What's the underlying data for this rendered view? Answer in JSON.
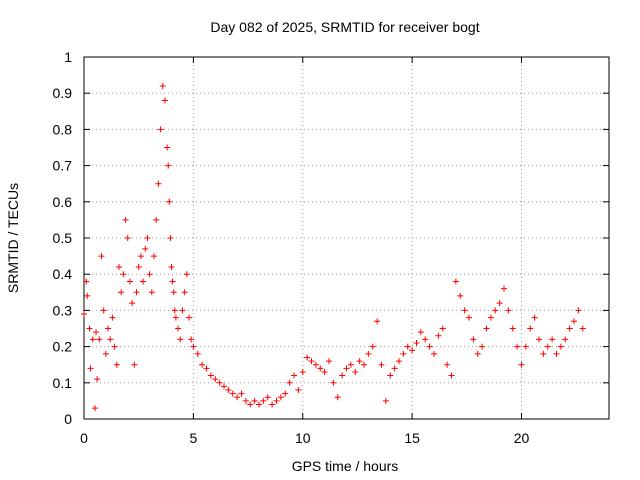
{
  "chart_data": {
    "type": "scatter",
    "title": "Day 082 of 2025, SRMTID for receiver bogt",
    "xlabel": "GPS time / hours",
    "ylabel": "SRMTID / TECUs",
    "xlim": [
      0,
      24
    ],
    "ylim": [
      0,
      1
    ],
    "x_ticks": [
      0,
      5,
      10,
      15,
      20
    ],
    "y_ticks": [
      0,
      0.1,
      0.2,
      0.3,
      0.4,
      0.5,
      0.6,
      0.7,
      0.8,
      0.9,
      1
    ],
    "x_tick_labels": [
      "0",
      "5",
      "10",
      "15",
      "20"
    ],
    "y_tick_labels": [
      "0",
      "0.1",
      "0.2",
      "0.3",
      "0.4",
      "0.5",
      "0.6",
      "0.7",
      "0.8",
      "0.9",
      "1"
    ],
    "grid": true,
    "marker": "+",
    "series": [
      {
        "name": "SRMTID",
        "color": "#ff0000",
        "x": [
          0.0,
          0.1,
          0.15,
          0.25,
          0.3,
          0.4,
          0.5,
          0.55,
          0.6,
          0.7,
          0.8,
          0.9,
          1.0,
          1.1,
          1.2,
          1.3,
          1.4,
          1.5,
          1.6,
          1.7,
          1.8,
          1.9,
          2.0,
          2.1,
          2.2,
          2.3,
          2.4,
          2.5,
          2.6,
          2.7,
          2.8,
          2.9,
          3.0,
          3.1,
          3.2,
          3.3,
          3.4,
          3.5,
          3.6,
          3.7,
          3.8,
          3.85,
          3.9,
          3.95,
          4.0,
          4.05,
          4.1,
          4.15,
          4.2,
          4.3,
          4.4,
          4.5,
          4.6,
          4.7,
          4.8,
          4.9,
          5.0,
          5.2,
          5.4,
          5.6,
          5.8,
          6.0,
          6.2,
          6.4,
          6.6,
          6.8,
          7.0,
          7.2,
          7.4,
          7.6,
          7.8,
          8.0,
          8.2,
          8.4,
          8.6,
          8.8,
          9.0,
          9.2,
          9.4,
          9.6,
          9.8,
          10.0,
          10.2,
          10.4,
          10.6,
          10.8,
          11.0,
          11.2,
          11.4,
          11.6,
          11.8,
          12.0,
          12.2,
          12.4,
          12.6,
          12.8,
          13.0,
          13.2,
          13.4,
          13.6,
          13.8,
          14.0,
          14.2,
          14.4,
          14.6,
          14.8,
          15.0,
          15.2,
          15.4,
          15.6,
          15.8,
          16.0,
          16.2,
          16.4,
          16.6,
          16.8,
          17.0,
          17.2,
          17.4,
          17.6,
          17.8,
          18.0,
          18.2,
          18.4,
          18.6,
          18.8,
          19.0,
          19.2,
          19.4,
          19.6,
          19.8,
          20.0,
          20.2,
          20.4,
          20.6,
          20.8,
          21.0,
          21.2,
          21.4,
          21.6,
          21.8,
          22.0,
          22.2,
          22.4,
          22.6,
          22.8
        ],
        "y": [
          0.29,
          0.38,
          0.34,
          0.25,
          0.14,
          0.22,
          0.03,
          0.24,
          0.11,
          0.22,
          0.45,
          0.3,
          0.18,
          0.25,
          0.22,
          0.28,
          0.2,
          0.15,
          0.42,
          0.35,
          0.4,
          0.55,
          0.5,
          0.38,
          0.32,
          0.15,
          0.35,
          0.42,
          0.45,
          0.38,
          0.47,
          0.5,
          0.4,
          0.35,
          0.45,
          0.55,
          0.65,
          0.8,
          0.92,
          0.88,
          0.75,
          0.7,
          0.6,
          0.5,
          0.42,
          0.38,
          0.35,
          0.3,
          0.28,
          0.25,
          0.22,
          0.3,
          0.35,
          0.4,
          0.28,
          0.22,
          0.2,
          0.18,
          0.15,
          0.14,
          0.12,
          0.11,
          0.1,
          0.09,
          0.08,
          0.07,
          0.06,
          0.07,
          0.05,
          0.04,
          0.05,
          0.04,
          0.05,
          0.06,
          0.04,
          0.05,
          0.06,
          0.07,
          0.1,
          0.12,
          0.08,
          0.13,
          0.17,
          0.16,
          0.15,
          0.14,
          0.13,
          0.16,
          0.1,
          0.06,
          0.12,
          0.14,
          0.15,
          0.13,
          0.16,
          0.15,
          0.18,
          0.2,
          0.27,
          0.15,
          0.05,
          0.12,
          0.14,
          0.16,
          0.18,
          0.2,
          0.19,
          0.21,
          0.24,
          0.22,
          0.2,
          0.18,
          0.23,
          0.25,
          0.15,
          0.12,
          0.38,
          0.34,
          0.3,
          0.28,
          0.22,
          0.18,
          0.2,
          0.25,
          0.28,
          0.3,
          0.32,
          0.36,
          0.3,
          0.25,
          0.2,
          0.15,
          0.2,
          0.25,
          0.28,
          0.22,
          0.18,
          0.2,
          0.22,
          0.18,
          0.2,
          0.22,
          0.25,
          0.27,
          0.3,
          0.25
        ]
      }
    ]
  }
}
